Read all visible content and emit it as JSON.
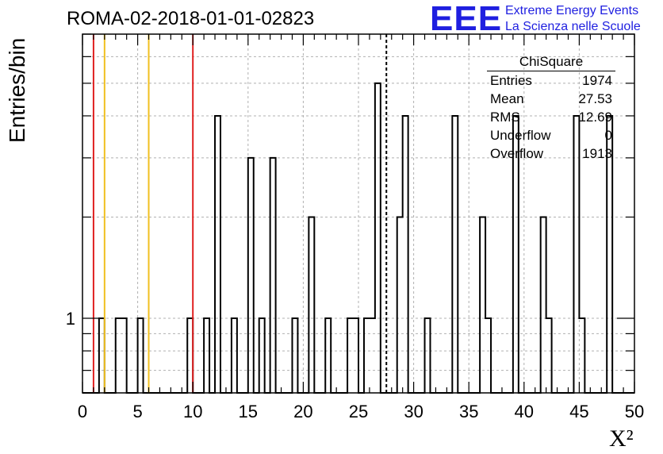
{
  "title": "ROMA-02-2018-01-01-02823",
  "logo": {
    "mark": "EEE",
    "line1": "Extreme Energy Events",
    "line2": "La Scienza nelle Scuole",
    "color": "#1f1fe0"
  },
  "stats": {
    "name": "ChiSquare",
    "rows": [
      {
        "label": "Entries",
        "value": "1974"
      },
      {
        "label": "Mean",
        "value": "27.53"
      },
      {
        "label": "RMS",
        "value": "12.69"
      },
      {
        "label": "Underflow",
        "value": "0"
      },
      {
        "label": "Overflow",
        "value": "1913"
      }
    ]
  },
  "chart_data": {
    "type": "bar",
    "histogram": true,
    "xlabel": "X²",
    "ylabel": "Entries/bin",
    "xlim": [
      0,
      50
    ],
    "ylim": [
      0.6,
      7
    ],
    "y_scale": "log",
    "grid": true,
    "x_ticks": [
      "0",
      "5",
      "10",
      "15",
      "20",
      "25",
      "30",
      "35",
      "40",
      "45",
      "50"
    ],
    "y_tick_labels": [
      {
        "value": 1,
        "label": "1"
      }
    ],
    "bin_width": 0.5,
    "bins": [
      {
        "x": 1.5,
        "y": 1
      },
      {
        "x": 3.0,
        "y": 1
      },
      {
        "x": 3.5,
        "y": 1
      },
      {
        "x": 5.0,
        "y": 1
      },
      {
        "x": 9.5,
        "y": 1
      },
      {
        "x": 11.0,
        "y": 1
      },
      {
        "x": 12.0,
        "y": 4
      },
      {
        "x": 13.5,
        "y": 1
      },
      {
        "x": 15.0,
        "y": 3
      },
      {
        "x": 16.0,
        "y": 1
      },
      {
        "x": 17.0,
        "y": 3
      },
      {
        "x": 19.0,
        "y": 1
      },
      {
        "x": 20.5,
        "y": 2
      },
      {
        "x": 22.0,
        "y": 1
      },
      {
        "x": 24.0,
        "y": 1
      },
      {
        "x": 24.5,
        "y": 1
      },
      {
        "x": 25.5,
        "y": 1
      },
      {
        "x": 26.0,
        "y": 1
      },
      {
        "x": 26.5,
        "y": 5
      },
      {
        "x": 28.5,
        "y": 2
      },
      {
        "x": 29.0,
        "y": 4
      },
      {
        "x": 31.0,
        "y": 1
      },
      {
        "x": 33.5,
        "y": 4
      },
      {
        "x": 36.0,
        "y": 2
      },
      {
        "x": 36.5,
        "y": 1
      },
      {
        "x": 39.0,
        "y": 4
      },
      {
        "x": 41.5,
        "y": 2
      },
      {
        "x": 42.0,
        "y": 1
      },
      {
        "x": 44.5,
        "y": 4
      },
      {
        "x": 45.0,
        "y": 1
      },
      {
        "x": 47.5,
        "y": 4
      }
    ],
    "vertical_lines": [
      {
        "x": 1.0,
        "color": "#e02020",
        "style": "solid"
      },
      {
        "x": 2.0,
        "color": "#f0c020",
        "style": "solid"
      },
      {
        "x": 6.0,
        "color": "#f0c020",
        "style": "solid"
      },
      {
        "x": 10.0,
        "color": "#e02020",
        "style": "solid"
      },
      {
        "x": 27.53,
        "color": "#000000",
        "style": "dashed"
      }
    ]
  }
}
